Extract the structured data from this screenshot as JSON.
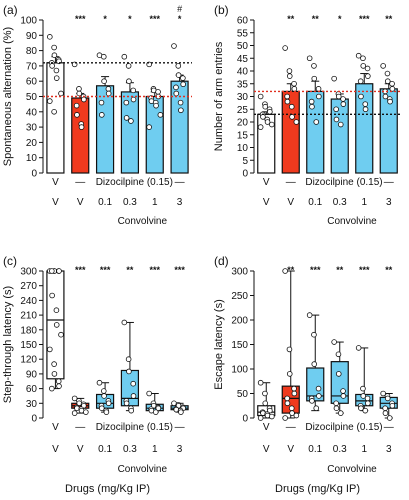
{
  "shared": {
    "drug_row_v": "V",
    "drug_row_dash": "—",
    "dizocilpine_label": "Dizocilpine (0.15)",
    "convolvine_label": "Convolvine",
    "drugs_axis_label": "Drugs (mg/Kg IP)",
    "row2_labels": [
      "V",
      "V",
      "0.1",
      "0.3",
      "1",
      "3"
    ]
  },
  "colors": {
    "vehicle": "#ffffff",
    "dizocilpine": "#f03a1e",
    "convolvine": "#6fcdf0",
    "outline": "#111111",
    "ref_line_black": "#111111",
    "ref_line_red": "#e03020"
  },
  "chart_data": [
    {
      "panel": "(a)",
      "type": "bar",
      "ylabel": "Spontaneous alternation (%)",
      "ylim": [
        0,
        100
      ],
      "yticks": [
        0,
        10,
        20,
        30,
        40,
        50,
        60,
        70,
        80,
        90,
        100
      ],
      "categories": [
        "V",
        "Dizocilpine",
        "Conv 0.1",
        "Conv 0.3",
        "Conv 1",
        "Conv 3"
      ],
      "values": [
        72,
        49,
        57,
        53,
        50,
        60
      ],
      "errors": [
        4,
        3,
        6,
        6,
        3,
        4
      ],
      "reference_lines": [
        {
          "y": 72,
          "color": "black"
        },
        {
          "y": 50,
          "color": "red"
        }
      ],
      "significance": [
        "",
        "***",
        "*",
        "*",
        "***",
        "*"
      ],
      "significance2": [
        "",
        "",
        "",
        "",
        "",
        "#"
      ],
      "points": [
        [
          89,
          82,
          77,
          74,
          73,
          72,
          70,
          67,
          62,
          52,
          47,
          40
        ],
        [
          71,
          55,
          52,
          50,
          48,
          44,
          38,
          32,
          30
        ],
        [
          77,
          76,
          60,
          55,
          52,
          46,
          38
        ],
        [
          76,
          70,
          60,
          54,
          48,
          46,
          36,
          34
        ],
        [
          71,
          55,
          54,
          53,
          50,
          49,
          47,
          46,
          44,
          38,
          30
        ],
        [
          83,
          70,
          64,
          62,
          58,
          56,
          52,
          46,
          41
        ]
      ]
    },
    {
      "panel": "(b)",
      "type": "bar",
      "ylabel": "Number of arm entries",
      "ylim": [
        0,
        60
      ],
      "yticks": [
        0,
        5,
        10,
        15,
        20,
        25,
        30,
        35,
        40,
        45,
        50,
        55,
        60
      ],
      "categories": [
        "V",
        "Dizocilpine",
        "Conv 0.1",
        "Conv 0.3",
        "Conv 1",
        "Conv 3"
      ],
      "values": [
        23,
        32,
        32,
        29,
        35,
        33
      ],
      "errors": [
        1,
        3,
        4,
        2,
        4,
        2
      ],
      "reference_lines": [
        {
          "y": 32,
          "color": "red"
        },
        {
          "y": 23,
          "color": "black"
        }
      ],
      "significance": [
        "",
        "**",
        "**",
        "*",
        "***",
        "**"
      ],
      "points": [
        [
          30,
          27,
          26,
          25,
          24,
          23,
          22,
          21,
          20,
          19,
          18
        ],
        [
          49,
          40,
          38,
          35,
          33,
          30,
          28,
          26,
          22,
          20
        ],
        [
          45,
          42,
          37,
          33,
          30,
          28,
          26,
          20
        ],
        [
          37,
          31,
          30,
          29,
          27,
          25,
          21,
          19
        ],
        [
          46,
          45,
          42,
          41,
          38,
          36,
          30,
          27,
          25
        ],
        [
          42,
          39,
          36,
          35,
          33,
          32,
          30,
          29,
          28
        ]
      ]
    },
    {
      "panel": "(c)",
      "type": "box",
      "ylabel": "Step-through latency (s)",
      "ylim": [
        0,
        300
      ],
      "yticks": [
        0,
        30,
        60,
        90,
        120,
        150,
        180,
        210,
        240,
        270,
        300
      ],
      "categories": [
        "V",
        "Dizocilpine",
        "Conv 0.1",
        "Conv 0.3",
        "Conv 1",
        "Conv 3"
      ],
      "boxes": [
        {
          "min": 60,
          "q1": 80,
          "median": 200,
          "q3": 300,
          "max": 300
        },
        {
          "min": 10,
          "q1": 20,
          "median": 25,
          "q3": 30,
          "max": 40
        },
        {
          "min": 12,
          "q1": 20,
          "median": 30,
          "q3": 48,
          "max": 72
        },
        {
          "min": 15,
          "q1": 25,
          "median": 40,
          "q3": 97,
          "max": 195
        },
        {
          "min": 12,
          "q1": 15,
          "median": 20,
          "q3": 28,
          "max": 50
        },
        {
          "min": 12,
          "q1": 17,
          "median": 20,
          "q3": 25,
          "max": 30
        }
      ],
      "significance": [
        "",
        "***",
        "***",
        "**",
        "***",
        "***"
      ],
      "points": [
        [
          300,
          300,
          300,
          300,
          300,
          300,
          250,
          220,
          190,
          170,
          140,
          110,
          90,
          75,
          65,
          60
        ],
        [
          40,
          35,
          30,
          28,
          25,
          22,
          20,
          18,
          15,
          12,
          10
        ],
        [
          72,
          55,
          45,
          35,
          30,
          25,
          20,
          15,
          12
        ],
        [
          195,
          120,
          95,
          70,
          45,
          35,
          30,
          20,
          15
        ],
        [
          50,
          30,
          25,
          22,
          20,
          18,
          15,
          12
        ],
        [
          30,
          27,
          25,
          22,
          20,
          18,
          17,
          15,
          12
        ]
      ]
    },
    {
      "panel": "(d)",
      "type": "box",
      "ylabel": "Escape latency (s)",
      "ylim": [
        0,
        300
      ],
      "yticks": [
        0,
        50,
        100,
        150,
        200,
        250,
        300
      ],
      "categories": [
        "V",
        "Dizocilpine",
        "Conv 0.1",
        "Conv 0.3",
        "Conv 1",
        "Conv 3"
      ],
      "boxes": [
        {
          "min": 0,
          "q1": 5,
          "median": 12,
          "q3": 25,
          "max": 72
        },
        {
          "min": 0,
          "q1": 10,
          "median": 40,
          "q3": 65,
          "max": 300
        },
        {
          "min": 15,
          "q1": 35,
          "median": 45,
          "q3": 102,
          "max": 210
        },
        {
          "min": 10,
          "q1": 30,
          "median": 45,
          "q3": 115,
          "max": 155
        },
        {
          "min": 15,
          "q1": 25,
          "median": 35,
          "q3": 48,
          "max": 143
        },
        {
          "min": 0,
          "q1": 20,
          "median": 30,
          "q3": 42,
          "max": 50
        }
      ],
      "significance": [
        "",
        "**",
        "***",
        "**",
        "***",
        "**"
      ],
      "points": [
        [
          72,
          50,
          30,
          20,
          15,
          12,
          10,
          8,
          5,
          3,
          0
        ],
        [
          300,
          140,
          90,
          60,
          50,
          40,
          30,
          20,
          10,
          5,
          0
        ],
        [
          210,
          170,
          110,
          60,
          45,
          40,
          35,
          20
        ],
        [
          155,
          130,
          90,
          55,
          45,
          30,
          20,
          10
        ],
        [
          143,
          60,
          45,
          40,
          30,
          25,
          20,
          15
        ],
        [
          50,
          45,
          40,
          30,
          25,
          20,
          10,
          0
        ]
      ]
    }
  ]
}
